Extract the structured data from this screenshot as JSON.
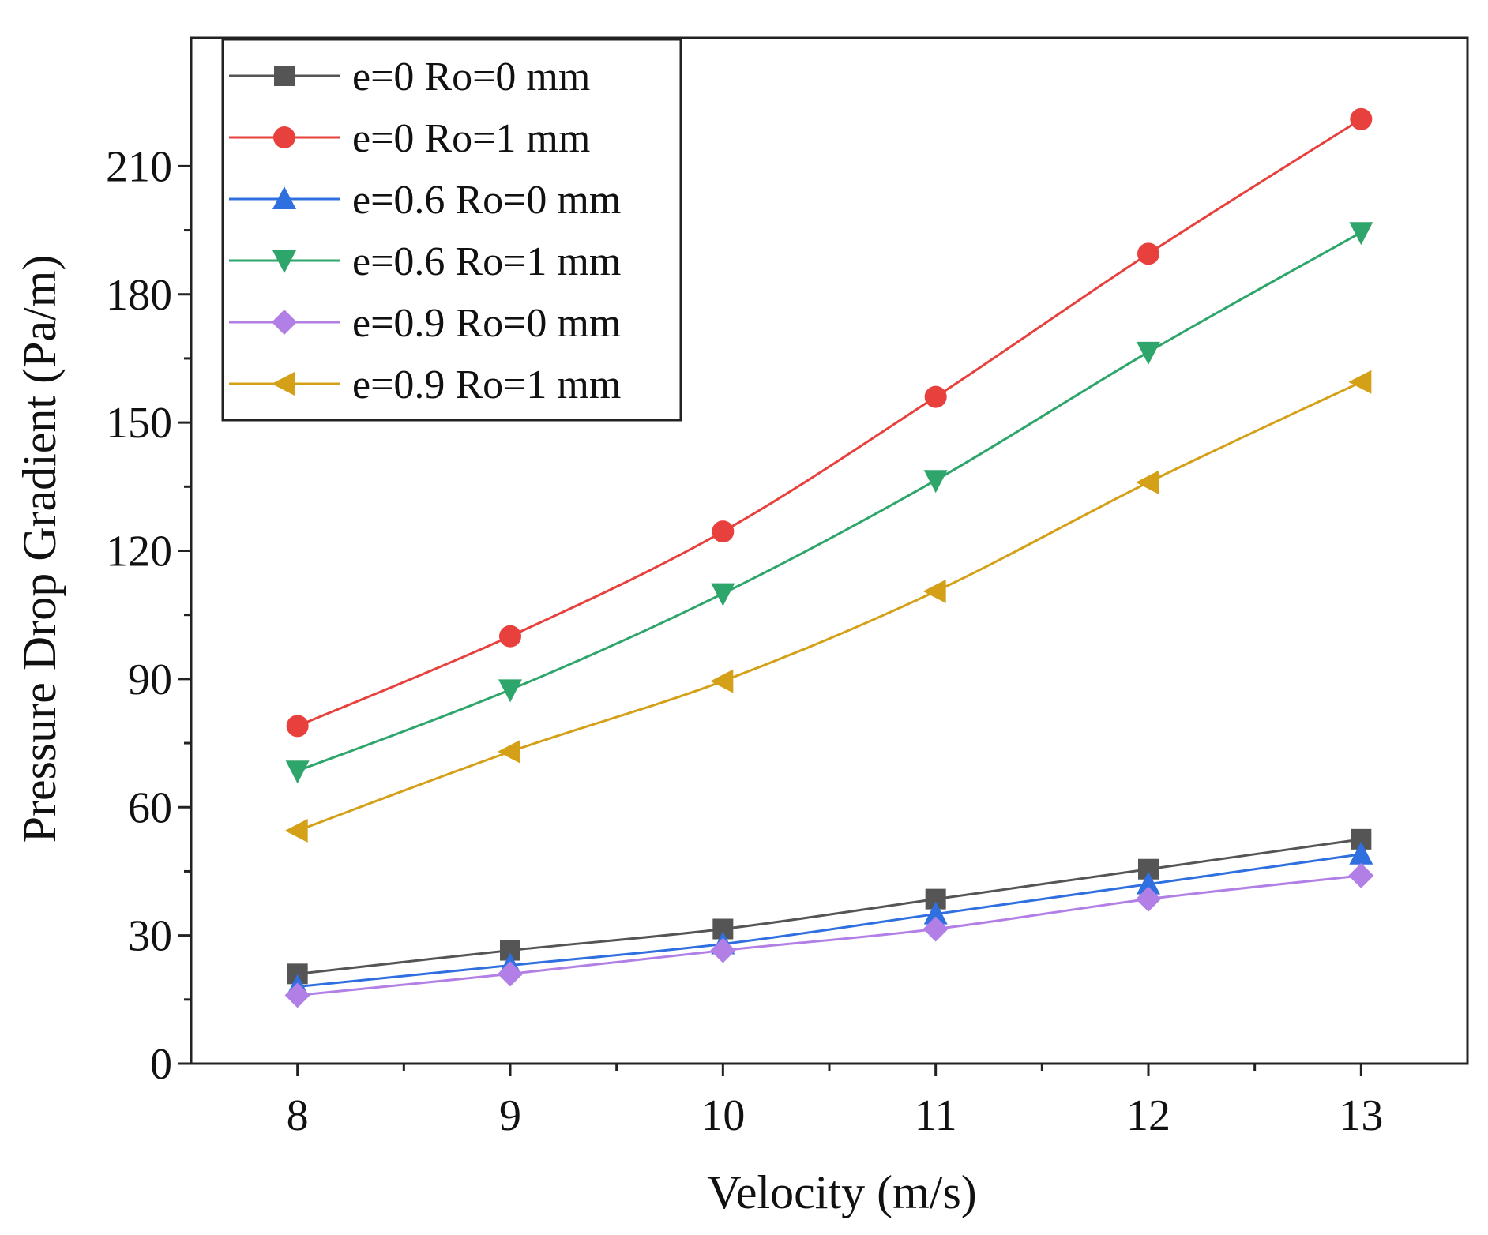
{
  "chart_data": {
    "type": "line",
    "title": "",
    "xlabel": "Velocity (m/s)",
    "ylabel": "Pressure Drop Gradient (Pa/m)",
    "x": [
      8,
      9,
      10,
      11,
      12,
      13
    ],
    "xlim": [
      7.5,
      13.5
    ],
    "ylim": [
      0,
      240
    ],
    "xticks": [
      8,
      9,
      10,
      11,
      12,
      13
    ],
    "yticks": [
      0,
      30,
      60,
      90,
      120,
      150,
      180,
      210
    ],
    "grid": false,
    "legend_position": "top-left",
    "series": [
      {
        "name": "e=0 Ro=0 mm",
        "color": "#555555",
        "marker": "square",
        "values": [
          21,
          26.5,
          31.5,
          38.5,
          45.5,
          52.5
        ]
      },
      {
        "name": "e=0 Ro=1 mm",
        "color": "#e8403c",
        "marker": "circle",
        "values": [
          79,
          100,
          124.5,
          156,
          189.5,
          221
        ]
      },
      {
        "name": "e=0.6 Ro=0 mm",
        "color": "#2f6fe0",
        "marker": "triangle-up",
        "values": [
          18,
          23,
          28,
          35,
          42,
          49
        ]
      },
      {
        "name": "e=0.6 Ro=1 mm",
        "color": "#2ea56b",
        "marker": "triangle-down",
        "values": [
          68.5,
          87.5,
          110,
          136.5,
          166.5,
          194.5
        ]
      },
      {
        "name": "e=0.9 Ro=0 mm",
        "color": "#b27fe6",
        "marker": "diamond",
        "values": [
          16,
          21,
          26.5,
          31.5,
          38.5,
          44
        ]
      },
      {
        "name": "e=0.9 Ro=1 mm",
        "color": "#d4a017",
        "marker": "triangle-left",
        "values": [
          54.5,
          73,
          89.5,
          110.5,
          136,
          159.5
        ]
      }
    ]
  }
}
